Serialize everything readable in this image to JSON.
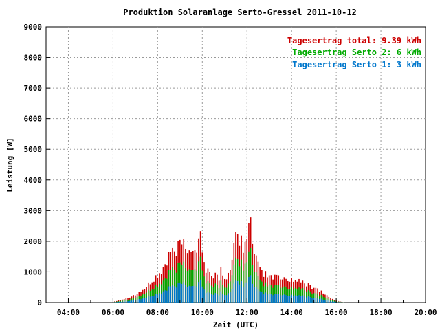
{
  "chart_data": {
    "type": "bar",
    "title": "Produktion Solaranlage Serto-Gressel 2011-10-12",
    "xlabel": "Zeit (UTC)",
    "ylabel": "Leistung [W]",
    "xlim_hours": [
      3.0,
      20.0
    ],
    "ylim": [
      0,
      9000
    ],
    "x_ticks": [
      4,
      6,
      8,
      10,
      12,
      14,
      16,
      18,
      20
    ],
    "x_tick_labels": [
      "04:00",
      "06:00",
      "08:00",
      "10:00",
      "12:00",
      "14:00",
      "16:00",
      "18:00",
      "20:00"
    ],
    "y_ticks": [
      0,
      1000,
      2000,
      3000,
      4000,
      5000,
      6000,
      7000,
      8000,
      9000
    ],
    "y_tick_labels": [
      "0",
      "1000",
      "2000",
      "3000",
      "4000",
      "5000",
      "6000",
      "7000",
      "8000",
      "9000"
    ],
    "grid": true,
    "legend_position": "top-right",
    "legend": [
      {
        "text": "Tagesertrag total: 9.39 kWh",
        "color": "#cc0000"
      },
      {
        "text": "Tagesertrag Serto 2: 6 kWh",
        "color": "#00aa00"
      },
      {
        "text": "Tagesertrag Serto 1: 3 kWh",
        "color": "#0077cc"
      }
    ],
    "series_colors": {
      "total": "#cc0000",
      "serto2": "#00aa00",
      "serto1": "#0077cc"
    },
    "series": [
      {
        "name": "total",
        "profile": [
          [
            6.0,
            30
          ],
          [
            6.3,
            80
          ],
          [
            6.6,
            150
          ],
          [
            7.0,
            260
          ],
          [
            7.4,
            450
          ],
          [
            7.8,
            750
          ],
          [
            8.2,
            1050
          ],
          [
            8.5,
            1500
          ],
          [
            8.8,
            1750
          ],
          [
            9.1,
            2000
          ],
          [
            9.4,
            1900
          ],
          [
            9.7,
            1750
          ],
          [
            9.9,
            2100
          ],
          [
            10.1,
            1200
          ],
          [
            10.4,
            950
          ],
          [
            10.8,
            850
          ],
          [
            11.1,
            900
          ],
          [
            11.3,
            1100
          ],
          [
            11.5,
            2200
          ],
          [
            11.7,
            2100
          ],
          [
            11.9,
            1900
          ],
          [
            12.05,
            2500
          ],
          [
            12.2,
            1900
          ],
          [
            12.5,
            1200
          ],
          [
            12.8,
            950
          ],
          [
            13.2,
            850
          ],
          [
            13.6,
            800
          ],
          [
            14.0,
            780
          ],
          [
            14.4,
            700
          ],
          [
            14.8,
            580
          ],
          [
            15.2,
            450
          ],
          [
            15.5,
            280
          ],
          [
            15.8,
            120
          ],
          [
            16.1,
            50
          ],
          [
            16.4,
            0
          ]
        ],
        "spikes": [
          [
            9.9,
            2330
          ],
          [
            12.15,
            2780
          ],
          [
            12.05,
            2600
          ],
          [
            11.5,
            2290
          ],
          [
            9.2,
            2080
          ],
          [
            8.6,
            1650
          ],
          [
            10.8,
            1150
          ],
          [
            13.3,
            900
          ]
        ]
      },
      {
        "name": "Serto 2",
        "fraction_of_total": 0.64
      },
      {
        "name": "Serto 1",
        "fraction_of_total": 0.32
      }
    ]
  }
}
